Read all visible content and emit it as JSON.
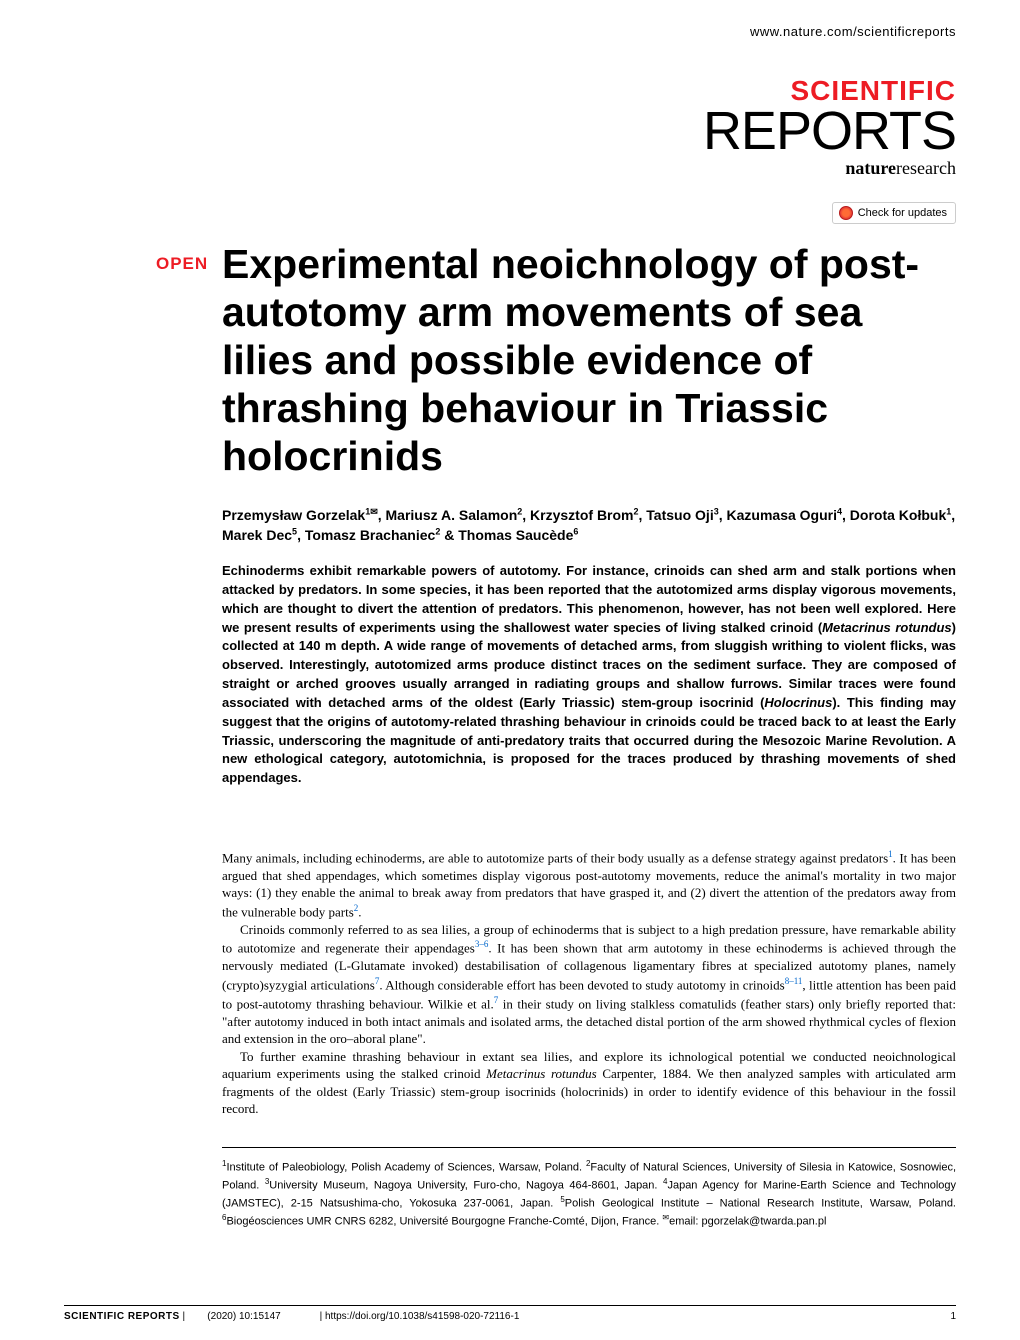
{
  "header": {
    "url": "www.nature.com/scientificreports"
  },
  "journal": {
    "scientific": "SCIENTIFIC",
    "reports": "REPORTS",
    "nature": "nature",
    "research": "research"
  },
  "check_updates": "Check for updates",
  "open_label": "OPEN",
  "title": "Experimental neoichnology of post-autotomy arm movements of sea lilies and possible evidence of thrashing behaviour in Triassic holocrinids",
  "authors_html": "Przemysław Gorzelak<sup>1✉</sup>, Mariusz A. Salamon<sup>2</sup>, Krzysztof Brom<sup>2</sup>, Tatsuo Oji<sup>3</sup>, Kazumasa Oguri<sup>4</sup>, Dorota Kołbuk<sup>1</sup>, Marek Dec<sup>5</sup>, Tomasz Brachaniec<sup>2</sup> & Thomas Saucède<sup>6</sup>",
  "abstract_html": "Echinoderms exhibit remarkable powers of autotomy. For instance, crinoids can shed arm and stalk portions when attacked by predators. In some species, it has been reported that the autotomized arms display vigorous movements, which are thought to divert the attention of predators. This phenomenon, however, has not been well explored. Here we present results of experiments using the shallowest water species of living stalked crinoid (<i>Metacrinus rotundus</i>) collected at 140 m depth. A wide range of movements of detached arms, from sluggish writhing to violent flicks, was observed. Interestingly, autotomized arms produce distinct traces on the sediment surface. They are composed of straight or arched grooves usually arranged in radiating groups and shallow furrows. Similar traces were found associated with detached arms of the oldest (Early Triassic) stem-group isocrinid (<i>Holocrinus</i>). This finding may suggest that the origins of autotomy-related thrashing behaviour in crinoids could be traced back to at least the Early Triassic, underscoring the magnitude of anti-predatory traits that occurred during the Mesozoic Marine Revolution. A new ethological category, autotomichnia, is proposed for the traces produced by thrashing movements of shed appendages.",
  "body_html": "<p>Many animals, including echinoderms, are able to autotomize parts of their body usually as a defense strategy against predators<sup>1</sup>. It has been argued that shed appendages, which sometimes display vigorous post-autotomy movements, reduce the animal's mortality in two major ways: (1) they enable the animal to break away from predators that have grasped it, and (2) divert the attention of the predators away from the vulnerable body parts<sup>2</sup>.</p><p>Crinoids commonly referred to as sea lilies, a group of echinoderms that is subject to a high predation pressure, have remarkable ability to autotomize and regenerate their appendages<sup>3–6</sup>. It has been shown that arm autotomy in these echinoderms is achieved through the nervously mediated (L-Glutamate invoked) destabilisation of collagenous ligamentary fibres at specialized autotomy planes, namely (crypto)syzygial articulations<sup>7</sup>. Although considerable effort has been devoted to study autotomy in crinoids<sup>8–11</sup>, little attention has been paid to post-autotomy thrashing behaviour. Wilkie et al.<sup>7</sup> in their study on living stalkless comatulids (feather stars) only briefly reported that: \"after autotomy induced in both intact animals and isolated arms, the detached distal portion of the arm showed rhythmical cycles of flexion and extension in the oro–aboral plane\".</p><p>To further examine thrashing behaviour in extant sea lilies, and explore its ichnological potential we conducted neoichnological aquarium experiments using the stalked crinoid <i>Metacrinus rotundus</i> Carpenter, 1884. We then analyzed samples with articulated arm fragments of the oldest (Early Triassic) stem-group isocrinids (holocrinids) in order to identify evidence of this behaviour in the fossil record.</p>",
  "affiliations_html": "<sup>1</sup>Institute of Paleobiology, Polish Academy of Sciences, Warsaw, Poland. <sup>2</sup>Faculty of Natural Sciences, University of Silesia in Katowice, Sosnowiec, Poland. <sup>3</sup>University Museum, Nagoya University, Furo-cho, Nagoya 464-8601, Japan. <sup>4</sup>Japan Agency for Marine-Earth Science and Technology (JAMSTEC), 2-15 Natsushima-cho, Yokosuka 237-0061, Japan. <sup>5</sup>Polish Geological Institute – National Research Institute, Warsaw, Poland. <sup>6</sup>Biogéosciences UMR CNRS 6282, Université Bourgogne Franche-Comté, Dijon, France. <sup>✉</sup>email: pgorzelak@twarda.pan.pl",
  "footer": {
    "journal": "SCIENTIFIC REPORTS",
    "citation": "(2020) 10:15147",
    "doi": "https://doi.org/10.1038/s41598-020-72116-1",
    "page": "1"
  },
  "colors": {
    "accent_red": "#ed1c24",
    "link_blue": "#0066cc",
    "text": "#000000",
    "background": "#ffffff"
  },
  "typography": {
    "title_fontsize": 41,
    "author_fontsize": 14,
    "abstract_fontsize": 13,
    "body_fontsize": 13,
    "affiliation_fontsize": 11,
    "footer_fontsize": 10
  }
}
